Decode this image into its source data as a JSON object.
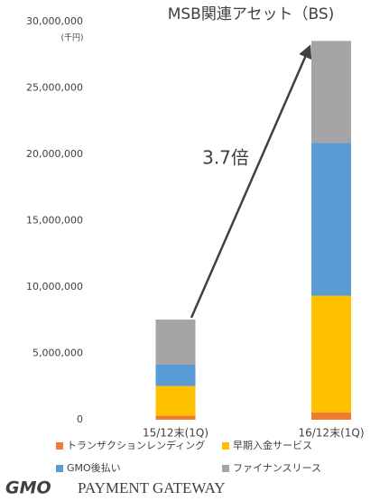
{
  "chart_data": {
    "type": "stacked_bar",
    "title": "MSB関連アセット（BS)",
    "unit_label": "(千円)",
    "annotation": "3.7倍",
    "categories": [
      "15/12末(1Q)",
      "16/12末(1Q)"
    ],
    "series": [
      {
        "name": "トランザクションレンディング",
        "color": "#ed7d31",
        "values": [
          300000,
          550000
        ]
      },
      {
        "name": "早期入金サービス",
        "color": "#ffc000",
        "values": [
          2250000,
          8800000
        ]
      },
      {
        "name": "GMO後払い",
        "color": "#5b9bd5",
        "values": [
          1600000,
          11500000
        ]
      },
      {
        "name": "ファイナンスリース",
        "color": "#a5a5a5",
        "values": [
          3400000,
          7700000
        ]
      }
    ],
    "ylim": [
      0,
      30000000
    ],
    "yticks": [
      0,
      {
        "value": 5000000,
        "label": "5,000,000"
      },
      {
        "value": 10000000,
        "label": "10,000,000"
      },
      {
        "value": 15000000,
        "label": "15,000,000"
      },
      {
        "value": 20000000,
        "label": "20,000,000"
      },
      {
        "value": 25000000,
        "label": "25,000,000"
      },
      {
        "value": 30000000,
        "label": "30,000,000"
      }
    ],
    "grid": false,
    "legend": "bottom"
  },
  "logo": {
    "mark": "GMO",
    "text": "PAYMENT GATEWAY"
  }
}
